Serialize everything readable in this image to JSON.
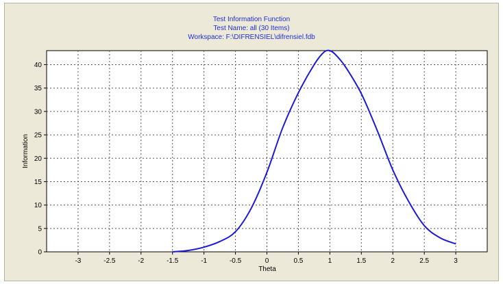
{
  "chart_data": {
    "type": "line",
    "title": "Test Information Function",
    "subtitle_lines": [
      "Test Name: all (30 Items)",
      "Workspace: F:\\DIFRENSIEL\\difrensiel.fdb"
    ],
    "xlabel": "Theta",
    "ylabel": "Information",
    "xlim": [
      -3.5,
      3.5
    ],
    "ylim": [
      0,
      43
    ],
    "x_ticks": [
      -3,
      -2.5,
      -2,
      -1.5,
      -1,
      -0.5,
      0,
      0.5,
      1,
      1.5,
      2,
      2.5,
      3
    ],
    "y_ticks": [
      0,
      5,
      10,
      15,
      20,
      25,
      30,
      35,
      40
    ],
    "grid": true,
    "series": [
      {
        "color": "#1a1ad8",
        "x": [
          -1.5,
          -1.25,
          -1.0,
          -0.75,
          -0.5,
          -0.25,
          0.0,
          0.25,
          0.5,
          0.75,
          0.9,
          1.0,
          1.1,
          1.25,
          1.5,
          1.75,
          2.0,
          2.25,
          2.5,
          2.75,
          3.0
        ],
        "y": [
          0.0,
          0.3,
          1.0,
          2.2,
          4.3,
          9.3,
          17.0,
          26.5,
          34.0,
          40.0,
          42.6,
          43.0,
          42.0,
          39.5,
          33.8,
          26.0,
          17.5,
          10.8,
          5.6,
          3.0,
          1.7
        ]
      }
    ]
  }
}
